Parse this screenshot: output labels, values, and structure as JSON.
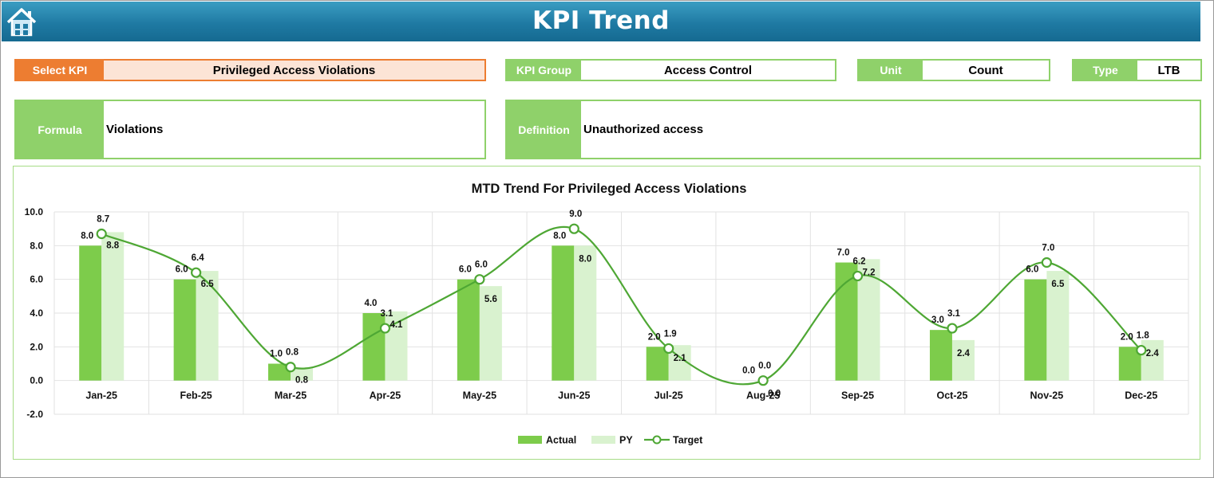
{
  "header": {
    "title": "KPI Trend",
    "home_icon": "home-icon"
  },
  "select_kpi": {
    "label": "Select KPI",
    "value": "Privileged Access Violations"
  },
  "kpi_group": {
    "label": "KPI Group",
    "value": "Access Control"
  },
  "unit": {
    "label": "Unit",
    "value": "Count"
  },
  "type": {
    "label": "Type",
    "value": "LTB"
  },
  "formula": {
    "label": "Formula",
    "value": "Violations"
  },
  "definition": {
    "label": "Definition",
    "value": "Unauthorized access"
  },
  "colors": {
    "banner": "#1f7aa3",
    "accent_orange": "#ed7d31",
    "actual": "#7dcc4b",
    "py": "#d9f2cf",
    "target": "#4ea734",
    "label_green": "#8fd16a"
  },
  "chart_data": {
    "type": "bar",
    "title": "MTD Trend For Privileged Access Violations",
    "categories": [
      "Jan-25",
      "Feb-25",
      "Mar-25",
      "Apr-25",
      "May-25",
      "Jun-25",
      "Jul-25",
      "Aug-25",
      "Sep-25",
      "Oct-25",
      "Nov-25",
      "Dec-25"
    ],
    "series": [
      {
        "name": "Actual",
        "kind": "bar",
        "values": [
          8.0,
          6.0,
          1.0,
          4.0,
          6.0,
          8.0,
          2.0,
          0.0,
          7.0,
          3.0,
          6.0,
          2.0
        ]
      },
      {
        "name": "PY",
        "kind": "bar",
        "values": [
          8.8,
          6.5,
          0.8,
          4.1,
          5.6,
          8.0,
          2.1,
          0.0,
          7.2,
          2.4,
          6.5,
          2.4
        ]
      },
      {
        "name": "Target",
        "kind": "line",
        "values": [
          8.7,
          6.4,
          0.8,
          3.1,
          6.0,
          9.0,
          1.9,
          0.0,
          6.2,
          3.1,
          7.0,
          1.8
        ]
      }
    ],
    "ylim": [
      -2.0,
      10.0
    ],
    "yticks": [
      "-2.0",
      "0.0",
      "2.0",
      "4.0",
      "6.0",
      "8.0",
      "10.0"
    ],
    "grid": true,
    "legend": "bottom"
  }
}
